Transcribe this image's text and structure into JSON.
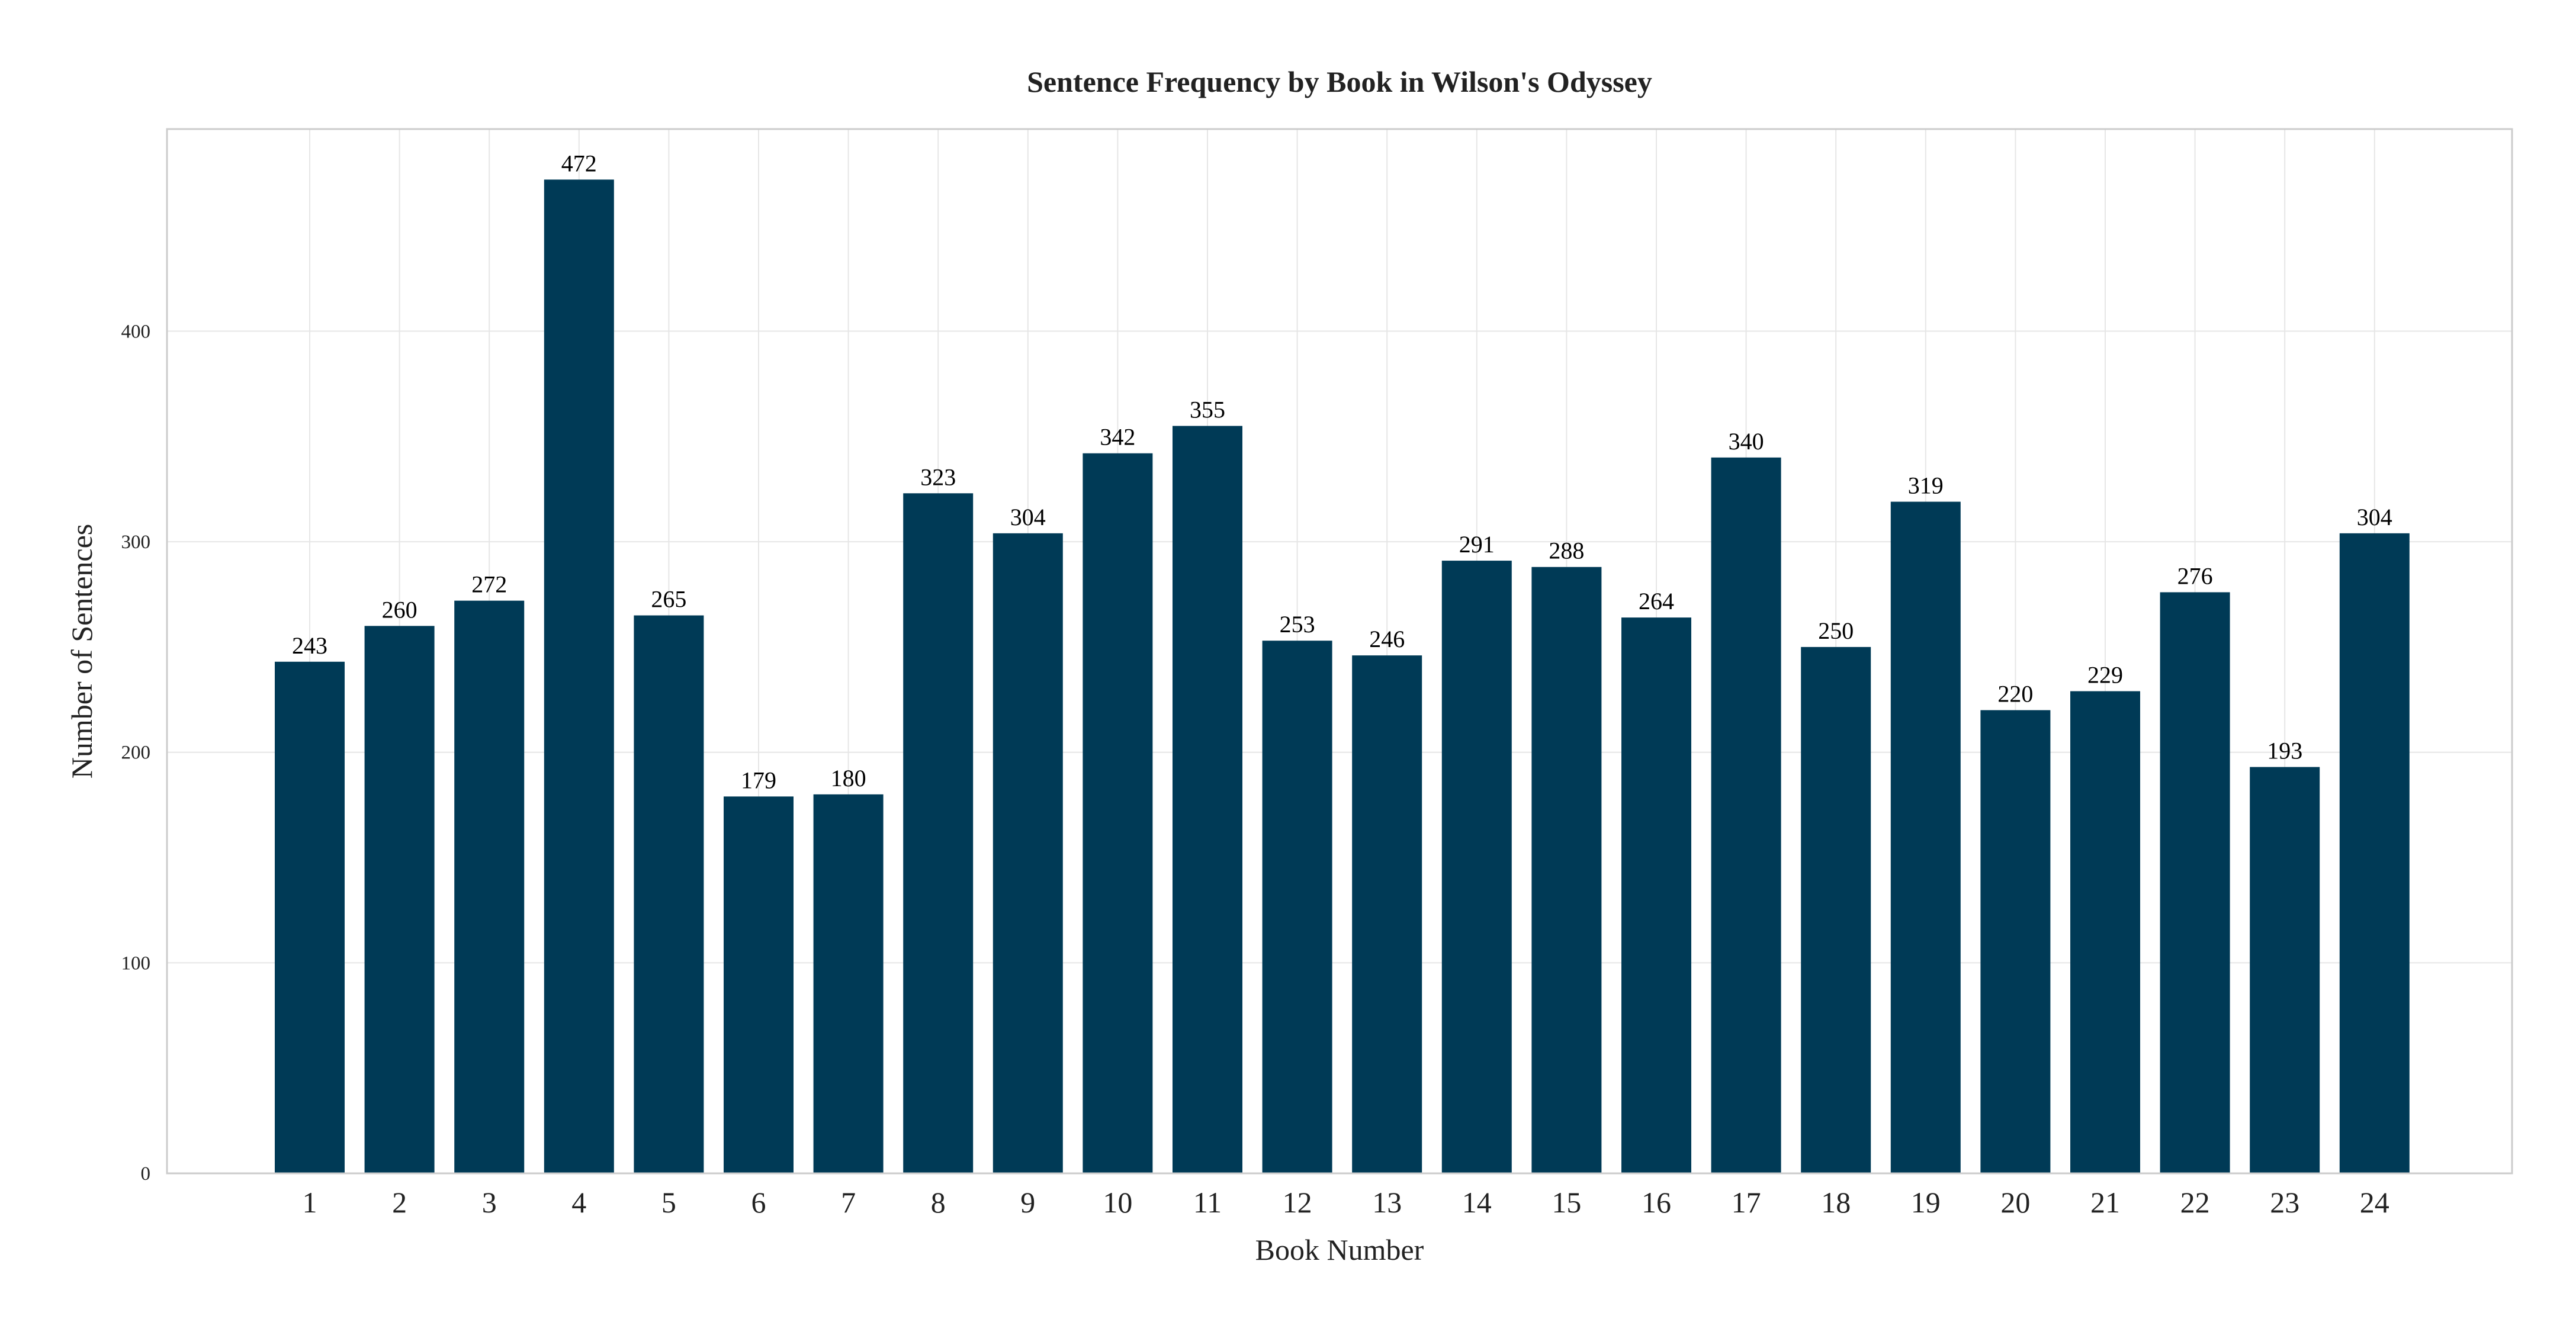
{
  "chart_data": {
    "type": "bar",
    "title": "Sentence Frequency by Book in Wilson's Odyssey",
    "xlabel": "Book Number",
    "ylabel": "Number of Sentences",
    "categories": [
      "1",
      "2",
      "3",
      "4",
      "5",
      "6",
      "7",
      "8",
      "9",
      "10",
      "11",
      "12",
      "13",
      "14",
      "15",
      "16",
      "17",
      "18",
      "19",
      "20",
      "21",
      "22",
      "23",
      "24"
    ],
    "values": [
      243,
      260,
      272,
      472,
      265,
      179,
      180,
      323,
      304,
      342,
      355,
      253,
      246,
      291,
      288,
      264,
      340,
      250,
      319,
      220,
      229,
      276,
      193,
      304
    ],
    "ylim": [
      0,
      496
    ],
    "yticks": [
      0,
      100,
      200,
      300,
      400
    ],
    "grid": true,
    "legend": "none",
    "bar_color": "#003a56",
    "show_data_labels": true
  }
}
